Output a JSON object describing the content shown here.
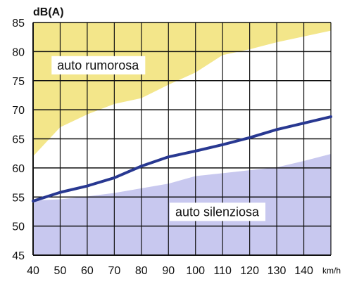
{
  "chart_data": {
    "type": "area",
    "ylabel": "dB(A)",
    "xlabel": "km/h",
    "x": [
      40,
      50,
      60,
      70,
      80,
      90,
      100,
      110,
      120,
      130,
      140,
      150
    ],
    "xlim": [
      40,
      150
    ],
    "ylim": [
      45,
      85
    ],
    "xticks": [
      40,
      50,
      60,
      70,
      80,
      90,
      100,
      110,
      120,
      130,
      140
    ],
    "xtick_labels": [
      "40",
      "50",
      "60",
      "70",
      "80",
      "90",
      "100",
      "110",
      "120",
      "130",
      "140"
    ],
    "yticks": [
      45,
      50,
      55,
      60,
      65,
      70,
      75,
      80,
      85
    ],
    "ytick_labels": [
      "45",
      "50",
      "55",
      "60",
      "65",
      "70",
      "75",
      "80",
      "85"
    ],
    "grid": {
      "horizontal": true,
      "vertical": true
    },
    "series": [
      {
        "role": "upper-band",
        "color": "#f3e68a",
        "values": [
          62,
          67,
          69.2,
          71,
          72,
          74.3,
          76.4,
          79.4,
          80.4,
          81.6,
          82.6,
          83.6
        ]
      },
      {
        "role": "middle-line",
        "color": "#283891",
        "values": [
          54.3,
          55.8,
          56.9,
          58.3,
          60.3,
          61.9,
          62.9,
          64,
          65.2,
          66.6,
          67.7,
          68.8
        ]
      },
      {
        "role": "lower-band",
        "color": "#c8c8ef",
        "values": [
          54.4,
          54.6,
          55.1,
          55.7,
          56.5,
          57.3,
          58.6,
          59.1,
          59.6,
          60.1,
          61.2,
          62.4
        ]
      }
    ],
    "annotations": [
      {
        "text": "auto rumorosa",
        "x": 64,
        "y": 77.5
      },
      {
        "text": "auto silenziosa",
        "x": 108,
        "y": 52.3
      }
    ]
  }
}
